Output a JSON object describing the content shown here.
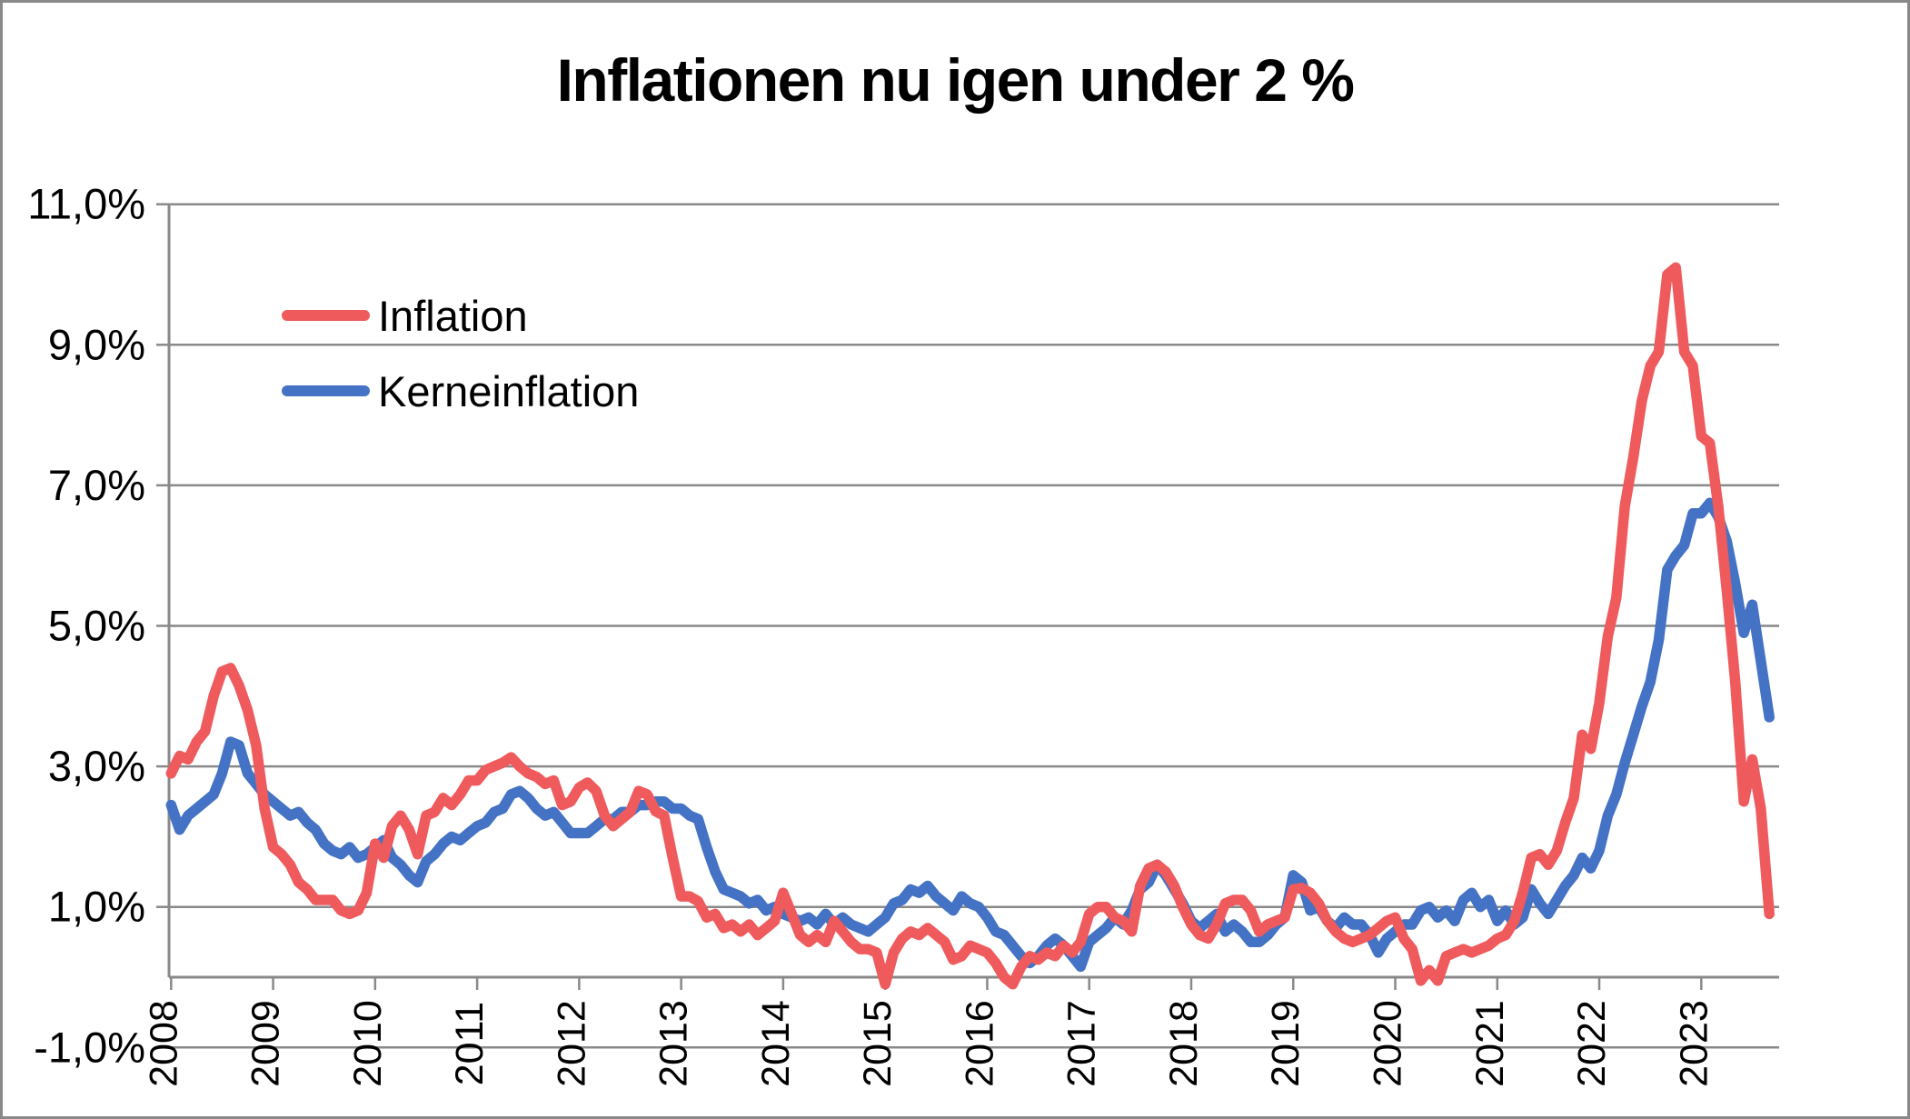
{
  "title": "Inflationen nu igen under 2 %",
  "legend": {
    "items": [
      {
        "label": "Inflation",
        "color": "#ef5a5c"
      },
      {
        "label": "Kerneinflation",
        "color": "#4472c4"
      }
    ]
  },
  "colors": {
    "grid": "#898989",
    "axis": "#898989",
    "frame_border": "#898989",
    "background": "#ffffff",
    "inflation_line": "#ef5a5c",
    "kerneinflation_line": "#4472c4"
  },
  "chart_data": {
    "type": "line",
    "title": "Inflationen nu igen under 2 %",
    "x_unit": "month",
    "x_start": "2008-01",
    "x_end": "2023-09",
    "grid": true,
    "legend_position": "inside-top-left",
    "ylim": [
      -1,
      11
    ],
    "y_ticks": [
      {
        "value": 11,
        "label": "11,0%"
      },
      {
        "value": 9,
        "label": "9,0%"
      },
      {
        "value": 7,
        "label": "7,0%"
      },
      {
        "value": 5,
        "label": "5,0%"
      },
      {
        "value": 3,
        "label": "3,0%"
      },
      {
        "value": 1,
        "label": "1,0%"
      },
      {
        "value": -1,
        "label": "-1,0%"
      }
    ],
    "x_ticks": [
      "2008",
      "2009",
      "2010",
      "2011",
      "2012",
      "2013",
      "2014",
      "2015",
      "2016",
      "2017",
      "2018",
      "2019",
      "2020",
      "2021",
      "2022",
      "2023"
    ],
    "series": [
      {
        "name": "Inflation",
        "color": "#ef5a5c",
        "values": [
          2.9,
          3.15,
          3.1,
          3.35,
          3.5,
          4.0,
          4.35,
          4.4,
          4.15,
          3.8,
          3.3,
          2.4,
          1.85,
          1.75,
          1.6,
          1.35,
          1.25,
          1.1,
          1.1,
          1.1,
          0.95,
          0.9,
          0.95,
          1.2,
          1.9,
          1.7,
          2.15,
          2.3,
          2.1,
          1.75,
          2.3,
          2.35,
          2.55,
          2.45,
          2.6,
          2.8,
          2.8,
          2.95,
          3.0,
          3.05,
          3.13,
          3.0,
          2.9,
          2.85,
          2.75,
          2.8,
          2.45,
          2.5,
          2.7,
          2.77,
          2.65,
          2.3,
          2.15,
          2.25,
          2.35,
          2.65,
          2.6,
          2.36,
          2.3,
          1.7,
          1.15,
          1.15,
          1.08,
          0.85,
          0.9,
          0.7,
          0.75,
          0.65,
          0.75,
          0.6,
          0.7,
          0.8,
          1.2,
          0.9,
          0.6,
          0.5,
          0.6,
          0.5,
          0.8,
          0.65,
          0.5,
          0.4,
          0.4,
          0.35,
          -0.1,
          0.35,
          0.55,
          0.65,
          0.6,
          0.7,
          0.6,
          0.5,
          0.25,
          0.3,
          0.45,
          0.4,
          0.35,
          0.2,
          0.0,
          -0.1,
          0.15,
          0.3,
          0.25,
          0.35,
          0.3,
          0.45,
          0.35,
          0.5,
          0.9,
          1.0,
          1.0,
          0.85,
          0.8,
          0.65,
          1.3,
          1.55,
          1.6,
          1.5,
          1.3,
          1.0,
          0.75,
          0.6,
          0.55,
          0.75,
          1.05,
          1.1,
          1.1,
          0.95,
          0.65,
          0.75,
          0.8,
          0.85,
          1.25,
          1.27,
          1.2,
          1.05,
          0.8,
          0.65,
          0.55,
          0.5,
          0.55,
          0.6,
          0.7,
          0.8,
          0.85,
          0.55,
          0.4,
          -0.05,
          0.1,
          -0.05,
          0.3,
          0.35,
          0.4,
          0.35,
          0.4,
          0.45,
          0.55,
          0.6,
          0.8,
          1.2,
          1.7,
          1.75,
          1.6,
          1.8,
          2.2,
          2.55,
          3.45,
          3.25,
          3.9,
          4.85,
          5.4,
          6.7,
          7.4,
          8.2,
          8.7,
          8.9,
          10.0,
          10.1,
          8.9,
          8.7,
          7.7,
          7.6,
          6.7,
          5.5,
          4.2,
          2.5,
          3.1,
          2.4,
          0.9
        ]
      },
      {
        "name": "Kerneinflation",
        "color": "#4472c4",
        "values": [
          2.45,
          2.1,
          2.3,
          2.4,
          2.5,
          2.6,
          2.9,
          3.35,
          3.3,
          2.9,
          2.75,
          2.6,
          2.5,
          2.4,
          2.3,
          2.35,
          2.2,
          2.1,
          1.9,
          1.8,
          1.75,
          1.85,
          1.7,
          1.75,
          1.85,
          1.95,
          1.7,
          1.6,
          1.45,
          1.35,
          1.65,
          1.75,
          1.9,
          2.0,
          1.95,
          2.05,
          2.15,
          2.2,
          2.35,
          2.4,
          2.6,
          2.65,
          2.55,
          2.4,
          2.3,
          2.35,
          2.2,
          2.05,
          2.05,
          2.05,
          2.15,
          2.25,
          2.25,
          2.35,
          2.35,
          2.45,
          2.45,
          2.5,
          2.5,
          2.4,
          2.4,
          2.3,
          2.25,
          1.85,
          1.5,
          1.25,
          1.2,
          1.15,
          1.05,
          1.1,
          0.95,
          1.0,
          0.9,
          0.85,
          0.8,
          0.85,
          0.75,
          0.9,
          0.75,
          0.85,
          0.75,
          0.7,
          0.65,
          0.75,
          0.85,
          1.05,
          1.1,
          1.25,
          1.2,
          1.3,
          1.15,
          1.05,
          0.95,
          1.15,
          1.05,
          1.0,
          0.85,
          0.65,
          0.6,
          0.45,
          0.3,
          0.2,
          0.3,
          0.45,
          0.55,
          0.45,
          0.3,
          0.15,
          0.5,
          0.6,
          0.7,
          0.85,
          0.75,
          0.95,
          1.25,
          1.35,
          1.6,
          1.45,
          1.25,
          1.05,
          0.8,
          0.7,
          0.8,
          0.9,
          0.65,
          0.75,
          0.65,
          0.5,
          0.5,
          0.6,
          0.75,
          0.85,
          1.45,
          1.35,
          0.95,
          1.0,
          0.8,
          0.7,
          0.85,
          0.75,
          0.75,
          0.6,
          0.35,
          0.55,
          0.65,
          0.75,
          0.75,
          0.95,
          1.0,
          0.85,
          0.95,
          0.8,
          1.1,
          1.2,
          1.0,
          1.1,
          0.8,
          0.95,
          0.75,
          0.85,
          1.25,
          1.05,
          0.9,
          1.1,
          1.3,
          1.45,
          1.7,
          1.55,
          1.8,
          2.3,
          2.6,
          3.05,
          3.45,
          3.85,
          4.2,
          4.8,
          5.8,
          6.0,
          6.15,
          6.6,
          6.6,
          6.75,
          6.55,
          6.2,
          5.6,
          4.9,
          5.3,
          4.5,
          3.7
        ]
      }
    ]
  }
}
